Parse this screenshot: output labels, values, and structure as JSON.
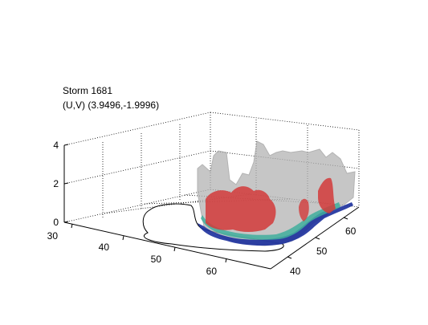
{
  "figure": {
    "title_line1": "Storm 1681",
    "title_line2": "(U,V) (3.9496,-1.9996)"
  },
  "chart_data": {
    "type": "3d-isosurface",
    "title": [
      "Storm 1681",
      "(U,V) (3.9496,-1.9996)"
    ],
    "x_axis": {
      "ticks": [
        30,
        40,
        50,
        60
      ],
      "range": [
        30,
        70
      ]
    },
    "y_axis": {
      "ticks": [
        40,
        50,
        60
      ],
      "range": [
        35,
        65
      ]
    },
    "z_axis": {
      "ticks": [
        0,
        2,
        4
      ],
      "range": [
        0,
        4
      ]
    },
    "grid": true,
    "surfaces": [
      {
        "color": "#b4b4b4"
      },
      {
        "color": "#d23a3a"
      },
      {
        "color": "#3fae9c"
      },
      {
        "color": "#1b2f9c"
      }
    ]
  }
}
